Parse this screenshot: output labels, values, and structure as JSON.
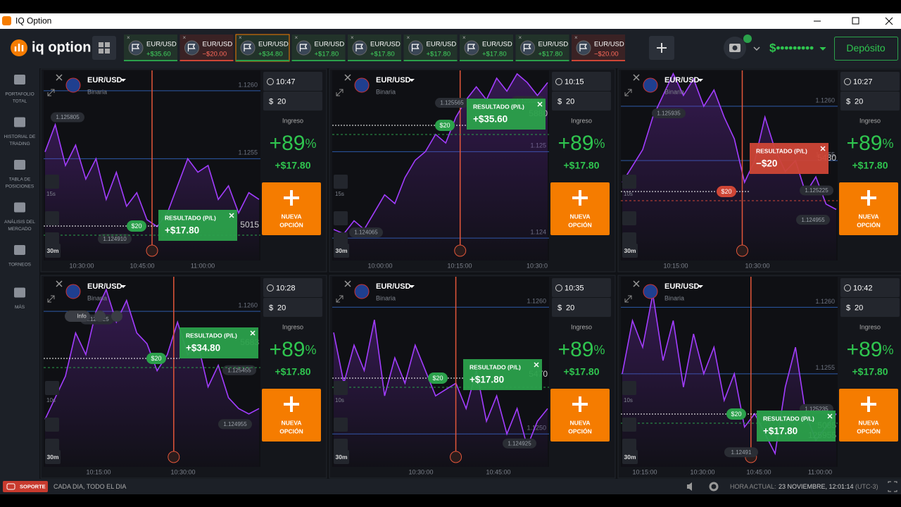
{
  "window_title": "IQ Option",
  "header": {
    "logo": "iq option",
    "tabs": [
      {
        "asset": "EUR/USD",
        "amount": "+$35.60"
      },
      {
        "asset": "EUR/USD",
        "amount": "−$20.00"
      },
      {
        "asset": "EUR/USD",
        "amount": "+$34.80"
      },
      {
        "asset": "EUR/USD",
        "amount": "+$17.80"
      },
      {
        "asset": "EUR/USD",
        "amount": "+$17.80"
      },
      {
        "asset": "EUR/USD",
        "amount": "+$17.80"
      },
      {
        "asset": "EUR/USD",
        "amount": "+$17.80"
      },
      {
        "asset": "EUR/USD",
        "amount": "+$17.80"
      },
      {
        "asset": "EUR/USD",
        "amount": "−$20.00"
      }
    ],
    "balance": "$•••••••••",
    "deposit": "Depósito"
  },
  "sidebar": [
    {
      "lines": [
        "PORTAFOLIO",
        "TOTAL"
      ]
    },
    {
      "lines": [
        "HISTORIAL DE",
        "TRADING"
      ]
    },
    {
      "lines": [
        "TABLA DE",
        "POSICIONES"
      ]
    },
    {
      "lines": [
        "ANÁLISIS DEL",
        "MERCADO"
      ]
    },
    {
      "lines": [
        "TORNEOS"
      ]
    },
    {
      "lines": [
        "MÁS"
      ]
    }
  ],
  "panels": [
    {
      "asset": "EUR/USD",
      "kind": "Binaria",
      "time": "10:47",
      "currency": "$",
      "amount": "20",
      "income": "Ingreso",
      "payout": "+89",
      "payout_unit": "%",
      "profit": "+$17.80",
      "button": [
        "NUEVA",
        "OPCIÓN"
      ],
      "result_label": "RESULTADO (P/L)",
      "result": "+$17.80",
      "stake": "$20",
      "tick": "15s",
      "frame": "30m",
      "ylim": [
        1.12475,
        1.12615
      ],
      "yticks": [
        {
          "value": 1.126,
          "label": "1.1260"
        },
        {
          "value": 1.1255,
          "label": "1.1255"
        }
      ],
      "price_tags": [
        {
          "value": 1.125805,
          "label": "1.125805"
        },
        {
          "value": 1.12491,
          "label": "1.124910"
        }
      ],
      "partial_tags": [
        "5015"
      ],
      "xlabels": [
        "10:30:00",
        "10:45:00",
        "11:00:00"
      ],
      "prices": [
        1.12555,
        1.12575,
        1.12545,
        1.1256,
        1.12535,
        1.1255,
        1.1252,
        1.1254,
        1.12515,
        1.12525,
        1.12505,
        1.125,
        1.1251,
        1.1253,
        1.1255,
        1.1254,
        1.12545,
        1.1252,
        1.1253,
        1.1251,
        1.12525,
        1.1252
      ]
    },
    {
      "asset": "EUR/USD",
      "kind": "Binaria",
      "time": "10:15",
      "currency": "$",
      "amount": "20",
      "income": "Ingreso",
      "payout": "+89",
      "payout_unit": "%",
      "profit": "+$17.80",
      "button": [
        "NUEVA",
        "OPCIÓN"
      ],
      "result_label": "RESULTADO (P/L)",
      "result": "+$35.60",
      "stake": "$20",
      "tick": "15s",
      "frame": "30m",
      "ylim": [
        1.12374,
        1.12594
      ],
      "yticks": [
        {
          "value": 1.125,
          "label": "1.125"
        },
        {
          "value": 1.124,
          "label": "1.124"
        }
      ],
      "price_tags": [
        {
          "value": 1.125565,
          "label": "1.125565"
        },
        {
          "value": 1.125585,
          "label": "1.125585"
        },
        {
          "value": 1.124065,
          "label": "1.124065"
        }
      ],
      "partial_tags": [
        "5880"
      ],
      "xlabels": [
        "10:00:00",
        "10:15:00",
        "10:30:0"
      ],
      "prices": [
        1.1241,
        1.12405,
        1.1242,
        1.1241,
        1.1243,
        1.1245,
        1.1244,
        1.1247,
        1.1249,
        1.125,
        1.1252,
        1.1251,
        1.1254,
        1.1256,
        1.12575,
        1.1256,
        1.12585,
        1.1257,
        1.1259,
        1.1258,
        1.12565,
        1.1258
      ]
    },
    {
      "asset": "EUR/USD",
      "kind": "Binaria",
      "time": "10:27",
      "currency": "$",
      "amount": "20",
      "income": "Ingreso",
      "payout": "+89",
      "payout_unit": "%",
      "profit": "+$17.80",
      "button": [
        "NUEVA",
        "OPCIÓN"
      ],
      "result_label": "RESULTADO (P/L)",
      "result": "−$20",
      "stake": "$20",
      "tick": "10s",
      "frame": "30m",
      "ylim": [
        1.12458,
        1.12633
      ],
      "yticks": [
        {
          "value": 1.126,
          "label": "1.1260"
        },
        {
          "value": 1.1255,
          "label": "1.1255"
        }
      ],
      "price_tags": [
        {
          "value": 1.125935,
          "label": "1.125935"
        },
        {
          "value": 1.125225,
          "label": "1.125225"
        },
        {
          "value": 1.124955,
          "label": "1.124955"
        }
      ],
      "partial_tags": [
        "5480"
      ],
      "xlabels": [
        "10:15:00",
        "10:30:00"
      ],
      "prices": [
        1.1253,
        1.12545,
        1.1256,
        1.1259,
        1.1261,
        1.1263,
        1.1261,
        1.12625,
        1.126,
        1.12615,
        1.1259,
        1.1257,
        1.1253,
        1.1255,
        1.1259,
        1.1256,
        1.1254,
        1.1255,
        1.1252,
        1.12535,
        1.1251,
        1.12505
      ]
    },
    {
      "asset": "EUR/USD",
      "kind": "Binaria",
      "time": "10:28",
      "currency": "$",
      "amount": "20",
      "income": "Ingreso",
      "payout": "+89",
      "payout_unit": "%",
      "profit": "+$17.80",
      "button": [
        "NUEVA",
        "OPCIÓN"
      ],
      "result_label": "RESULTADO (P/L)",
      "result": "+$34.80",
      "stake": "$20",
      "tick": "10s",
      "frame": "30m",
      "chip": "Info",
      "ylim": [
        1.12456,
        1.12632
      ],
      "yticks": [
        {
          "value": 1.126,
          "label": "1.1260"
        }
      ],
      "price_tags": [
        {
          "value": 1.125925,
          "label": "1.125925"
        },
        {
          "value": 1.125455,
          "label": "1.125455"
        },
        {
          "value": 1.124955,
          "label": "1.124955"
        }
      ],
      "partial_tags": [
        "5683"
      ],
      "xlabels": [
        "10:15:00",
        "10:30:00"
      ],
      "prices": [
        1.125,
        1.1252,
        1.1254,
        1.1258,
        1.1256,
        1.126,
        1.1262,
        1.1259,
        1.1261,
        1.1258,
        1.1257,
        1.12545,
        1.1256,
        1.1259,
        1.1256,
        1.1257,
        1.1253,
        1.1255,
        1.1252,
        1.1251,
        1.12505,
        1.1251
      ]
    },
    {
      "asset": "EUR/USD",
      "kind": "Binaria",
      "time": "10:35",
      "currency": "$",
      "amount": "20",
      "income": "Ingreso",
      "payout": "+89",
      "payout_unit": "%",
      "profit": "+$17.80",
      "button": [
        "NUEVA",
        "OPCIÓN"
      ],
      "result_label": "RESULTADO (P/L)",
      "result": "+$17.80",
      "stake": "$20",
      "tick": "10s",
      "frame": "30m",
      "ylim": [
        1.12474,
        1.12624
      ],
      "yticks": [
        {
          "value": 1.126,
          "label": "1.1260"
        },
        {
          "value": 1.125,
          "label": "1.1250"
        }
      ],
      "price_tags": [
        {
          "value": 1.124925,
          "label": "1.124925"
        }
      ],
      "partial_tags": [
        "5470"
      ],
      "xlabels": [
        "10:30:00",
        "10:45:00"
      ],
      "prices": [
        1.1258,
        1.1254,
        1.1257,
        1.1255,
        1.1259,
        1.1253,
        1.1256,
        1.1254,
        1.1257,
        1.1255,
        1.1253,
        1.12535,
        1.1254,
        1.1252,
        1.1255,
        1.1251,
        1.1253,
        1.125,
        1.1252,
        1.1249,
        1.1251,
        1.1252
      ]
    },
    {
      "asset": "EUR/USD",
      "kind": "Binaria",
      "time": "10:42",
      "currency": "$",
      "amount": "20",
      "income": "Ingreso",
      "payout": "+89",
      "payout_unit": "%",
      "profit": "+$17.80",
      "button": [
        "NUEVA",
        "OPCIÓN"
      ],
      "result_label": "RESULTADO (P/L)",
      "result": "+$17.80",
      "stake": "$20",
      "tick": "10s",
      "frame": "30m",
      "ylim": [
        1.1248,
        1.12623
      ],
      "yticks": [
        {
          "value": 1.126,
          "label": "1.1260"
        },
        {
          "value": 1.1255,
          "label": "1.1255"
        }
      ],
      "price_tags": [
        {
          "value": 1.125235,
          "label": "1.125235"
        },
        {
          "value": 1.12491,
          "label": "1.12491"
        }
      ],
      "partial_tags": [
        "5085",
        "125955"
      ],
      "xlabels": [
        "10:15:00",
        "10:30:00",
        "10:45:00",
        "11:00:00"
      ],
      "prices": [
        1.1255,
        1.1259,
        1.1257,
        1.1261,
        1.1256,
        1.1259,
        1.1254,
        1.1258,
        1.1255,
        1.1257,
        1.1253,
        1.1255,
        1.1251,
        1.1252,
        1.12505,
        1.1249,
        1.1254,
        1.1257,
        1.1252,
        1.125,
        1.1251,
        1.1252
      ]
    }
  ],
  "footer": {
    "support": "SOPORTE",
    "hours": "CADA DIA, TODO EL DIA",
    "time_label": "HORA ACTUAL:",
    "time": "23 NOVIEMBRE, 12:01:14",
    "timezone": "(UTC-3)"
  }
}
